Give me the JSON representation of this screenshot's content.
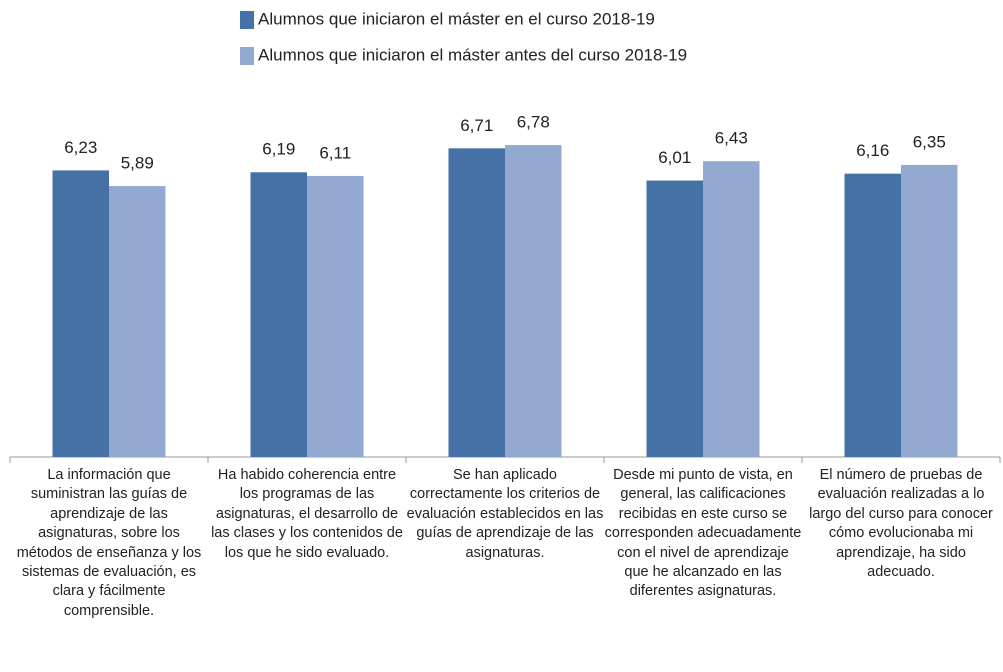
{
  "chart_data": {
    "type": "bar",
    "categories": [
      "La información que suministran las guías de aprendizaje de las asignaturas, sobre los métodos de enseñanza y los sistemas de evaluación, es clara y fácilmente comprensible.",
      "Ha habido coherencia entre los programas de las asignaturas, el desarrollo de las clases y los contenidos de los que he sido evaluado.",
      "Se han aplicado correctamente los criterios de evaluación establecidos en las guías de aprendizaje de las asignaturas.",
      "Desde mi punto de vista, en general, las calificaciones recibidas en este curso se corresponden adecuadamente con el nivel de aprendizaje que he alcanzado en las diferentes asignaturas.",
      "El número de pruebas de evaluación realizadas a lo largo del curso para conocer cómo evolucionaba mi aprendizaje, ha sido adecuado."
    ],
    "series": [
      {
        "name": "Alumnos que iniciaron el máster en el curso 2018-19",
        "color": "#4571a7",
        "values": [
          6.23,
          6.19,
          6.71,
          6.01,
          6.16
        ],
        "value_labels": [
          "6,23",
          "6,19",
          "6,71",
          "6,01",
          "6,16"
        ]
      },
      {
        "name": "Alumnos que iniciaron el máster antes del curso 2018-19",
        "color": "#93a9d2",
        "values": [
          5.89,
          6.11,
          6.78,
          6.43,
          6.35
        ],
        "value_labels": [
          "5,89",
          "6,11",
          "6,78",
          "6,43",
          "6,35"
        ]
      }
    ],
    "ylim": [
      0,
      8
    ],
    "legend": "top"
  }
}
